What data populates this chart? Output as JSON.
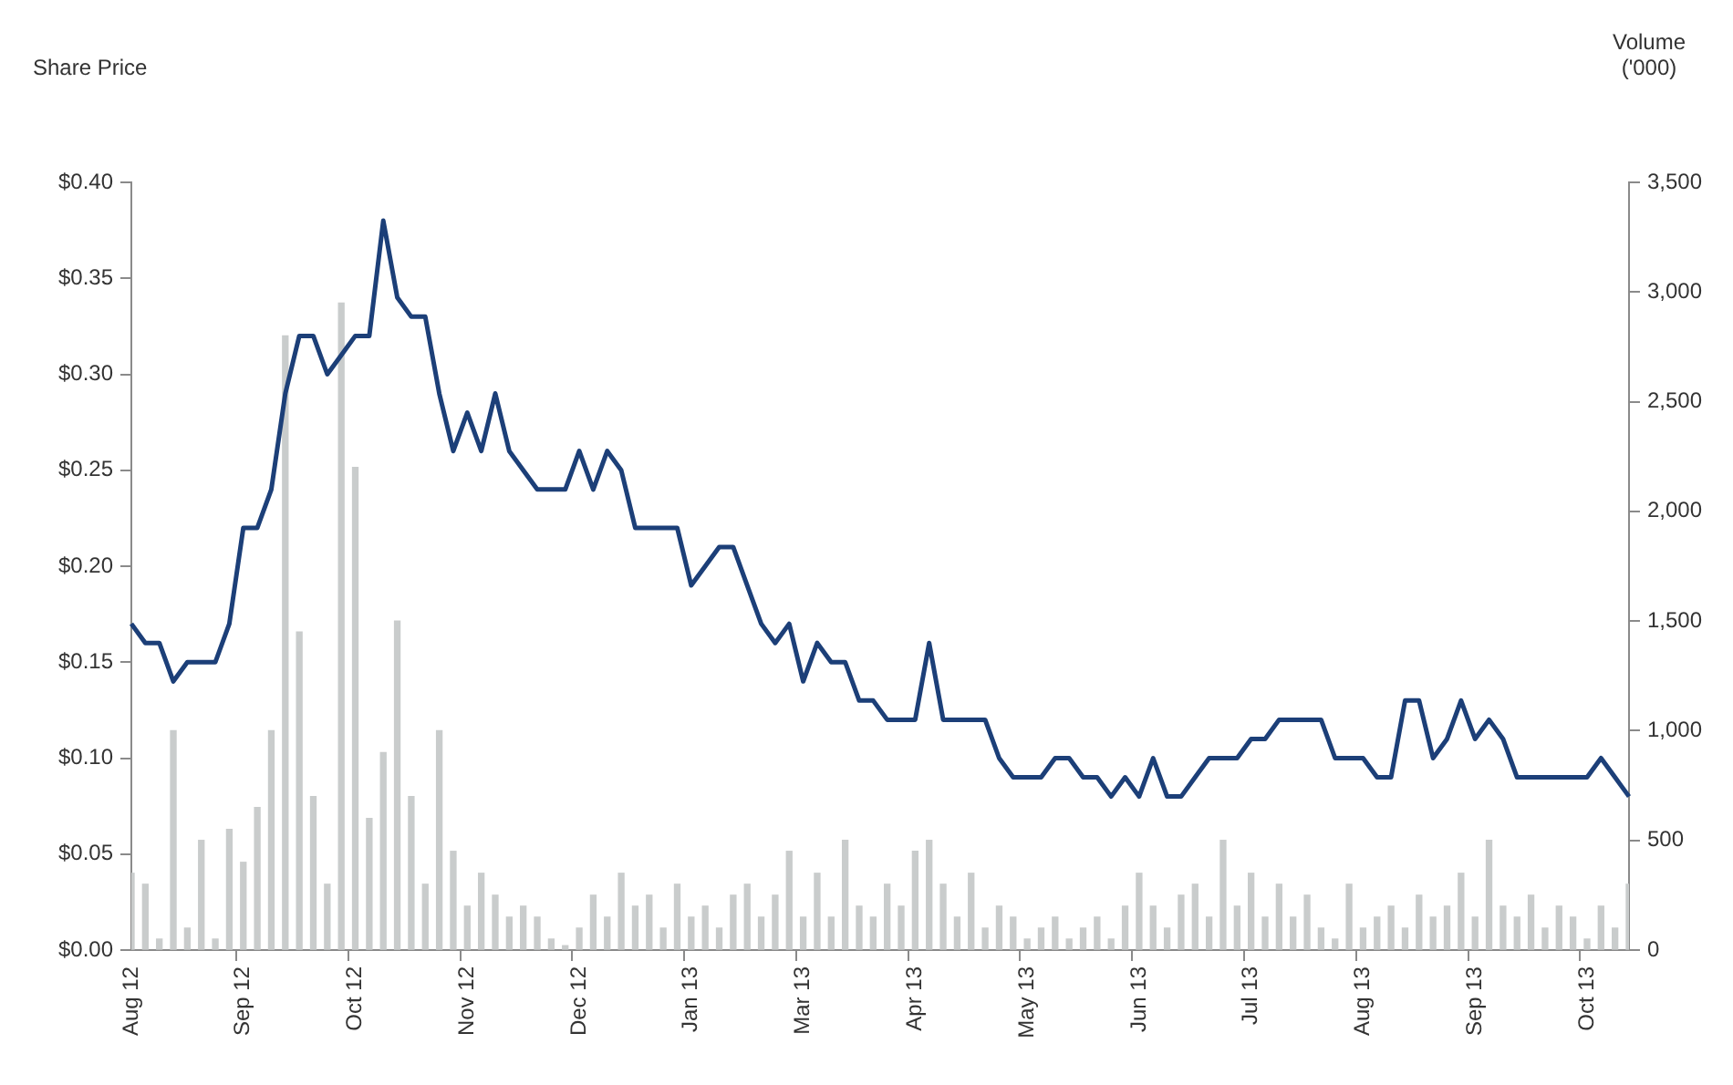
{
  "chart_data": {
    "type": "line",
    "ylabel": "Share Price",
    "y2label": "Volume ('000)",
    "categories": [
      "Aug 12",
      null,
      null,
      null,
      null,
      null,
      null,
      null,
      "Sep 12",
      null,
      null,
      null,
      null,
      null,
      null,
      null,
      "Oct 12",
      null,
      null,
      null,
      null,
      null,
      null,
      null,
      "Nov 12",
      null,
      null,
      null,
      null,
      null,
      null,
      null,
      "Dec 12",
      null,
      null,
      null,
      null,
      null,
      null,
      null,
      "Jan 13",
      null,
      null,
      null,
      null,
      null,
      null,
      null,
      "Mar 13",
      null,
      null,
      null,
      null,
      null,
      null,
      null,
      "Apr 13",
      null,
      null,
      null,
      null,
      null,
      null,
      null,
      "May 13",
      null,
      null,
      null,
      null,
      null,
      null,
      null,
      "Jun 13",
      null,
      null,
      null,
      null,
      null,
      null,
      null,
      "Jul 13",
      null,
      null,
      null,
      null,
      null,
      null,
      null,
      "Aug 13",
      null,
      null,
      null,
      null,
      null,
      null,
      null,
      "Sep 13",
      null,
      null,
      null,
      null,
      null,
      null,
      null,
      "Oct 13",
      null,
      null,
      null
    ],
    "series": [
      {
        "type": "bar",
        "axis": "y2",
        "color": "#c9cccc",
        "values": [
          350,
          300,
          50,
          1000,
          100,
          500,
          50,
          550,
          400,
          650,
          1000,
          2800,
          1450,
          700,
          300,
          2950,
          2200,
          600,
          900,
          1500,
          700,
          300,
          1000,
          450,
          200,
          350,
          250,
          150,
          200,
          150,
          50,
          20,
          100,
          250,
          150,
          350,
          200,
          250,
          100,
          300,
          150,
          200,
          100,
          250,
          300,
          150,
          250,
          450,
          150,
          350,
          150,
          500,
          200,
          150,
          300,
          200,
          450,
          500,
          300,
          150,
          350,
          100,
          200,
          150,
          50,
          100,
          150,
          50,
          100,
          150,
          50,
          200,
          350,
          200,
          100,
          250,
          300,
          150,
          500,
          200,
          350,
          150,
          300,
          150,
          250,
          100,
          50,
          300,
          100,
          150,
          200,
          100,
          250,
          150,
          200,
          350,
          150,
          500,
          200,
          150,
          250,
          100,
          200,
          150,
          50,
          200,
          100,
          300
        ]
      },
      {
        "color": "#1c3f78",
        "values": [
          0.17,
          0.16,
          0.16,
          0.14,
          0.15,
          0.15,
          0.15,
          0.17,
          0.22,
          0.22,
          0.24,
          0.29,
          0.32,
          0.32,
          0.3,
          0.31,
          0.32,
          0.32,
          0.38,
          0.34,
          0.33,
          0.33,
          0.29,
          0.26,
          0.28,
          0.26,
          0.29,
          0.26,
          0.25,
          0.24,
          0.24,
          0.24,
          0.26,
          0.24,
          0.26,
          0.25,
          0.22,
          0.22,
          0.22,
          0.22,
          0.19,
          0.2,
          0.21,
          0.21,
          0.19,
          0.17,
          0.16,
          0.17,
          0.14,
          0.16,
          0.15,
          0.15,
          0.13,
          0.13,
          0.12,
          0.12,
          0.12,
          0.16,
          0.12,
          0.12,
          0.12,
          0.12,
          0.1,
          0.09,
          0.09,
          0.09,
          0.1,
          0.1,
          0.09,
          0.09,
          0.08,
          0.09,
          0.08,
          0.1,
          0.08,
          0.08,
          0.09,
          0.1,
          0.1,
          0.1,
          0.11,
          0.11,
          0.12,
          0.12,
          0.12,
          0.12,
          0.1,
          0.1,
          0.1,
          0.09,
          0.09,
          0.13,
          0.13,
          0.1,
          0.11,
          0.13,
          0.11,
          0.12,
          0.11,
          0.09,
          0.09,
          0.09,
          0.09,
          0.09,
          0.09,
          0.1,
          0.09,
          0.08
        ]
      }
    ],
    "ylim": [
      0,
      0.4
    ],
    "yticks": [
      {
        "value": 0,
        "label": "$0.00"
      },
      {
        "value": 0.05,
        "label": "$0.05"
      },
      {
        "value": 0.1,
        "label": "$0.10"
      },
      {
        "value": 0.15,
        "label": "$0.15"
      },
      {
        "value": 0.2,
        "label": "$0.20"
      },
      {
        "value": 0.25,
        "label": "$0.25"
      },
      {
        "value": 0.3,
        "label": "$0.30"
      },
      {
        "value": 0.35,
        "label": "$0.35"
      },
      {
        "value": 0.4,
        "label": "$0.40"
      }
    ],
    "y2lim": [
      0,
      3500
    ],
    "y2ticks": [
      0,
      500,
      {
        "value": 1000,
        "label": "1,000"
      },
      {
        "value": 1500,
        "label": "1,500"
      },
      {
        "value": 2000,
        "label": "2,000"
      },
      {
        "value": 2500,
        "label": "2,500"
      },
      {
        "value": 3000,
        "label": "3,000"
      },
      {
        "value": 3500,
        "label": "3,500"
      }
    ]
  }
}
